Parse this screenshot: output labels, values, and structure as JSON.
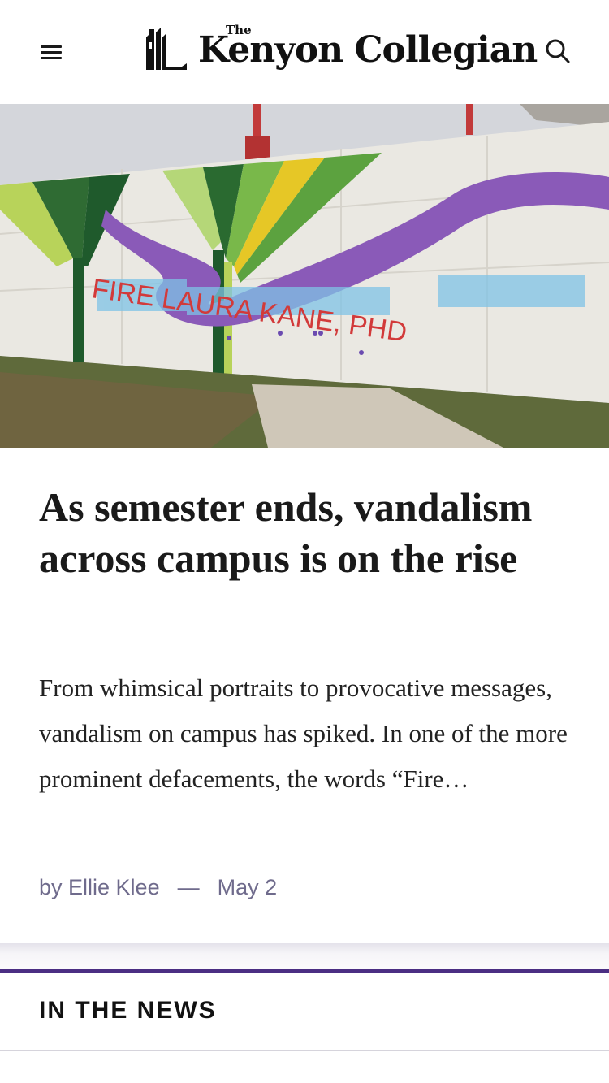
{
  "header": {
    "logo_small": "The",
    "logo_name": "Kenyon Collegian",
    "menu_icon": "menu-icon",
    "search_icon": "search-icon"
  },
  "hero": {
    "image": "campus-wall-mural-graffiti",
    "graffiti_text": "FIRE LAURA KANE, PHD"
  },
  "article": {
    "headline": "As semester ends, vandalism across campus is on the rise",
    "excerpt": "From whimsical portraits to provocative messages, vandalism on campus has spiked. In one of the more prominent defacements, the words “Fire…",
    "byline_prefix": "by Ellie Klee",
    "separator": "—",
    "date": "May 2"
  },
  "section": {
    "title": "IN THE NEWS"
  },
  "colors": {
    "accent": "#4b2e83",
    "byline": "#6f6b8c"
  }
}
